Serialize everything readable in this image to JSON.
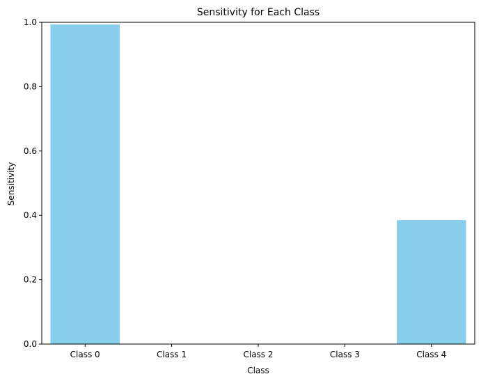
{
  "chart_data": {
    "type": "bar",
    "title": "Sensitivity for Each Class",
    "xlabel": "Class",
    "ylabel": "Sensitivity",
    "categories": [
      "Class 0",
      "Class 1",
      "Class 2",
      "Class 3",
      "Class 4"
    ],
    "values": [
      0.993,
      0.0,
      0.0,
      0.0,
      0.385
    ],
    "ylim": [
      0,
      1.0
    ],
    "yticks": [
      0.0,
      0.2,
      0.4,
      0.6,
      0.8,
      1.0
    ],
    "ytick_labels": [
      "0.0",
      "0.2",
      "0.4",
      "0.6",
      "0.8",
      "1.0"
    ],
    "grid": false,
    "bar_color": "#87CEEB"
  }
}
